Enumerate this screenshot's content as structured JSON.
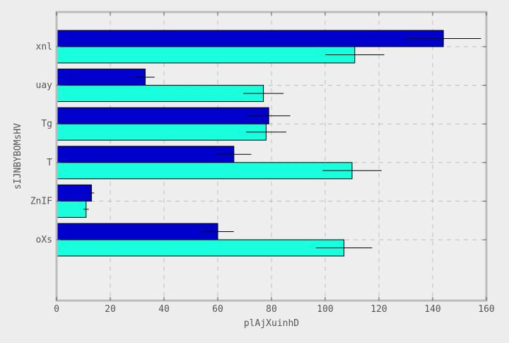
{
  "chart_data": {
    "type": "bar",
    "orientation": "horizontal",
    "title": "",
    "xlabel": "plAjXuinhD",
    "ylabel": "sIJNBYBOMsHV",
    "xlim": [
      0,
      160
    ],
    "xticks": [
      0,
      20,
      40,
      60,
      80,
      100,
      120,
      140,
      160
    ],
    "categories": [
      "xnl",
      "uay",
      "Tg",
      "T",
      "ZnIF",
      "oXs"
    ],
    "series": [
      {
        "color": "#0000cd",
        "values": [
          144,
          33,
          79,
          66,
          13,
          60
        ],
        "errors": [
          14,
          3.5,
          8,
          6.5,
          1,
          6
        ]
      },
      {
        "color": "#19ffde",
        "values": [
          111,
          77,
          78,
          110,
          11,
          107
        ],
        "errors": [
          11,
          7.5,
          7.5,
          11,
          1,
          10.5
        ]
      }
    ],
    "grid": true,
    "legend": "none"
  }
}
